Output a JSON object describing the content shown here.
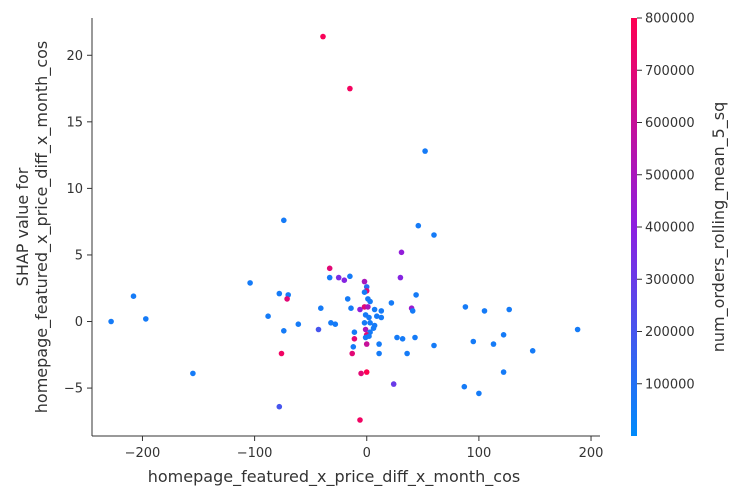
{
  "chart_data": {
    "type": "scatter",
    "xlabel": "homepage_featured_x_price_diff_x_month_cos",
    "ylabel": "SHAP value for\nhomepage_featured_x_price_diff_x_month_cos",
    "xlim": [
      -245,
      208
    ],
    "ylim": [
      -8.6,
      22.8
    ],
    "xticks": [
      -200,
      -100,
      0,
      100,
      200
    ],
    "yticks": [
      -5,
      0,
      5,
      10,
      15,
      20
    ],
    "grid": false,
    "colorbar": {
      "label": "num_orders_rolling_mean_5_sq",
      "range": [
        0,
        800000
      ],
      "ticks": [
        100000,
        200000,
        300000,
        400000,
        500000,
        600000,
        700000,
        800000
      ],
      "low_color": "#008bfb",
      "high_color": "#ff0051"
    },
    "points": [
      {
        "x": -39,
        "y": 21.4,
        "c": 780000
      },
      {
        "x": -15,
        "y": 17.5,
        "c": 760000
      },
      {
        "x": 52,
        "y": 12.8,
        "c": 60000
      },
      {
        "x": -74,
        "y": 7.6,
        "c": 60000
      },
      {
        "x": 46,
        "y": 7.2,
        "c": 60000
      },
      {
        "x": 60,
        "y": 6.5,
        "c": 60000
      },
      {
        "x": 31,
        "y": 5.2,
        "c": 420000
      },
      {
        "x": -33,
        "y": 4.0,
        "c": 700000
      },
      {
        "x": -33,
        "y": 3.3,
        "c": 60000
      },
      {
        "x": -25,
        "y": 3.3,
        "c": 350000
      },
      {
        "x": -20,
        "y": 3.1,
        "c": 380000
      },
      {
        "x": -15,
        "y": 3.4,
        "c": 60000
      },
      {
        "x": 30,
        "y": 3.3,
        "c": 380000
      },
      {
        "x": -104,
        "y": 2.9,
        "c": 60000
      },
      {
        "x": -2,
        "y": 3.0,
        "c": 500000
      },
      {
        "x": 0,
        "y": 2.6,
        "c": 120000
      },
      {
        "x": 0,
        "y": 2.3,
        "c": 700000
      },
      {
        "x": -2,
        "y": 2.2,
        "c": 60000
      },
      {
        "x": -208,
        "y": 1.9,
        "c": 60000
      },
      {
        "x": -78,
        "y": 2.1,
        "c": 60000
      },
      {
        "x": -70,
        "y": 2.0,
        "c": 60000
      },
      {
        "x": -71,
        "y": 1.7,
        "c": 700000
      },
      {
        "x": 44,
        "y": 2.0,
        "c": 60000
      },
      {
        "x": -17,
        "y": 1.7,
        "c": 60000
      },
      {
        "x": 1,
        "y": 1.7,
        "c": 60000
      },
      {
        "x": 3,
        "y": 1.5,
        "c": 60000
      },
      {
        "x": 22,
        "y": 1.4,
        "c": 60000
      },
      {
        "x": -41,
        "y": 1.0,
        "c": 60000
      },
      {
        "x": -14,
        "y": 1.0,
        "c": 60000
      },
      {
        "x": -6,
        "y": 0.9,
        "c": 420000
      },
      {
        "x": -2,
        "y": 1.1,
        "c": 700000
      },
      {
        "x": 1,
        "y": 1.1,
        "c": 500000
      },
      {
        "x": 7,
        "y": 0.9,
        "c": 60000
      },
      {
        "x": 13,
        "y": 0.8,
        "c": 60000
      },
      {
        "x": 40,
        "y": 1.0,
        "c": 450000
      },
      {
        "x": 41,
        "y": 0.8,
        "c": 60000
      },
      {
        "x": 88,
        "y": 1.1,
        "c": 60000
      },
      {
        "x": 105,
        "y": 0.8,
        "c": 60000
      },
      {
        "x": 127,
        "y": 0.9,
        "c": 60000
      },
      {
        "x": -88,
        "y": 0.4,
        "c": 60000
      },
      {
        "x": -197,
        "y": 0.2,
        "c": 60000
      },
      {
        "x": -228,
        "y": 0.0,
        "c": 60000
      },
      {
        "x": -1,
        "y": 0.5,
        "c": 60000
      },
      {
        "x": 2,
        "y": 0.3,
        "c": 60000
      },
      {
        "x": 9,
        "y": 0.4,
        "c": 60000
      },
      {
        "x": 13,
        "y": 0.3,
        "c": 60000
      },
      {
        "x": -61,
        "y": -0.2,
        "c": 60000
      },
      {
        "x": -32,
        "y": -0.1,
        "c": 60000
      },
      {
        "x": -28,
        "y": -0.2,
        "c": 60000
      },
      {
        "x": -2,
        "y": -0.1,
        "c": 60000
      },
      {
        "x": 3,
        "y": -0.1,
        "c": 60000
      },
      {
        "x": 7,
        "y": -0.3,
        "c": 60000
      },
      {
        "x": -74,
        "y": -0.7,
        "c": 60000
      },
      {
        "x": -43,
        "y": -0.6,
        "c": 200000
      },
      {
        "x": -11,
        "y": -0.8,
        "c": 60000
      },
      {
        "x": -1,
        "y": -0.6,
        "c": 500000
      },
      {
        "x": 3,
        "y": -0.8,
        "c": 60000
      },
      {
        "x": 6,
        "y": -0.5,
        "c": 60000
      },
      {
        "x": 0,
        "y": -1.0,
        "c": 700000
      },
      {
        "x": -1,
        "y": -1.2,
        "c": 60000
      },
      {
        "x": 2,
        "y": -1.1,
        "c": 60000
      },
      {
        "x": 27,
        "y": -1.2,
        "c": 60000
      },
      {
        "x": 32,
        "y": -1.3,
        "c": 60000
      },
      {
        "x": 43,
        "y": -1.2,
        "c": 60000
      },
      {
        "x": -11,
        "y": -1.3,
        "c": 700000
      },
      {
        "x": -12,
        "y": -1.9,
        "c": 60000
      },
      {
        "x": 0,
        "y": -1.7,
        "c": 600000
      },
      {
        "x": 11,
        "y": -1.7,
        "c": 60000
      },
      {
        "x": 60,
        "y": -1.8,
        "c": 60000
      },
      {
        "x": 95,
        "y": -1.5,
        "c": 60000
      },
      {
        "x": 113,
        "y": -1.7,
        "c": 60000
      },
      {
        "x": 122,
        "y": -1.0,
        "c": 60000
      },
      {
        "x": 188,
        "y": -0.6,
        "c": 60000
      },
      {
        "x": -76,
        "y": -2.4,
        "c": 750000
      },
      {
        "x": -13,
        "y": -2.4,
        "c": 700000
      },
      {
        "x": 11,
        "y": -2.4,
        "c": 60000
      },
      {
        "x": 36,
        "y": -2.4,
        "c": 60000
      },
      {
        "x": 148,
        "y": -2.2,
        "c": 60000
      },
      {
        "x": -155,
        "y": -3.9,
        "c": 60000
      },
      {
        "x": -5,
        "y": -3.9,
        "c": 700000
      },
      {
        "x": 0,
        "y": -3.8,
        "c": 800000
      },
      {
        "x": 122,
        "y": -3.8,
        "c": 60000
      },
      {
        "x": 24,
        "y": -4.7,
        "c": 300000
      },
      {
        "x": 87,
        "y": -4.9,
        "c": 60000
      },
      {
        "x": 100,
        "y": -5.4,
        "c": 60000
      },
      {
        "x": -78,
        "y": -6.4,
        "c": 200000
      },
      {
        "x": -6,
        "y": -7.4,
        "c": 750000
      }
    ]
  }
}
